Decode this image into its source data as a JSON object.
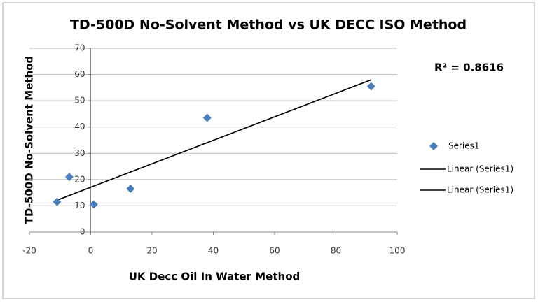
{
  "chart_data": {
    "type": "scatter",
    "title": "TD-500D No-Solvent Method vs UK DECC ISO Method",
    "x_label": "UK Decc Oil In Water Method",
    "y_label": "TD-500D No-Solvent Method",
    "annotation": "R² = 0.8616",
    "series": [
      {
        "name": "Series1",
        "color": "#4a7ebb",
        "x": [
          -11,
          -7,
          1,
          13,
          38,
          91.5
        ],
        "values": [
          11.5,
          21,
          10.5,
          16.5,
          43.5,
          55.5
        ]
      }
    ],
    "trendlines": [
      {
        "name": "Linear (Series1)",
        "color": "#000000"
      },
      {
        "name": "Linear (Series1)",
        "color": "#000000"
      }
    ],
    "xlim": [
      -20,
      100
    ],
    "xticks": [
      -20,
      0,
      20,
      40,
      60,
      80,
      100
    ],
    "ylim": [
      0,
      70
    ],
    "yticks": [
      0,
      10,
      20,
      30,
      40,
      50,
      60,
      70
    ],
    "grid": true,
    "legend": "right"
  }
}
